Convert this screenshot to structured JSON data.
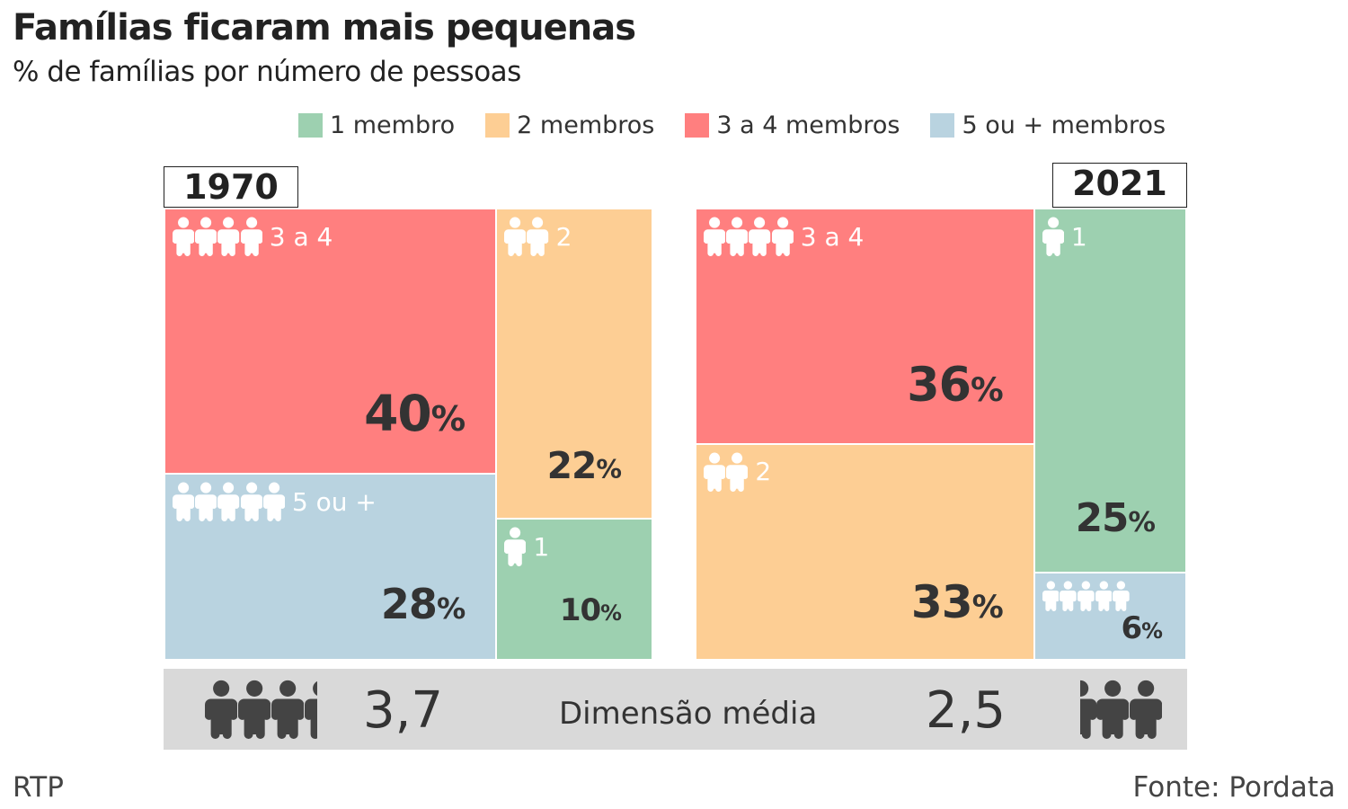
{
  "title": "Famílias ficaram mais pequenas",
  "subtitle": "% de famílias por número de pessoas",
  "chart_data": {
    "type": "treemap",
    "legend": [
      {
        "key": "1",
        "label": "1 membro",
        "color": "#9dd0b0"
      },
      {
        "key": "2",
        "label": "2 membros",
        "color": "#fdce94"
      },
      {
        "key": "34",
        "label": "3 a 4 membros",
        "color": "#ff7f7f"
      },
      {
        "key": "5",
        "label": "5 ou + membros",
        "color": "#b9d3e0"
      }
    ],
    "years": [
      {
        "year": "1970",
        "columns": [
          [
            {
              "key": "34",
              "label": "3 a 4",
              "value": 40,
              "icons": 4
            },
            {
              "key": "5",
              "label": "5 ou +",
              "value": 28,
              "icons": 5
            }
          ],
          [
            {
              "key": "2",
              "label": "2",
              "value": 22,
              "icons": 2
            },
            {
              "key": "1",
              "label": "1",
              "value": 10,
              "icons": 1
            }
          ]
        ],
        "avg_size": "3,7"
      },
      {
        "year": "2021",
        "columns": [
          [
            {
              "key": "34",
              "label": "3 a 4",
              "value": 36,
              "icons": 4
            },
            {
              "key": "2",
              "label": "2",
              "value": 33,
              "icons": 2
            }
          ],
          [
            {
              "key": "1",
              "label": "1",
              "value": 25,
              "icons": 1
            },
            {
              "key": "5",
              "label": "",
              "value": 6,
              "icons": 5
            }
          ]
        ],
        "avg_size": "2,5"
      }
    ],
    "pct_suffix": "%"
  },
  "avg_label": "Dimensão média",
  "footer": {
    "left": "RTP",
    "right": "Fonte: Pordata"
  }
}
